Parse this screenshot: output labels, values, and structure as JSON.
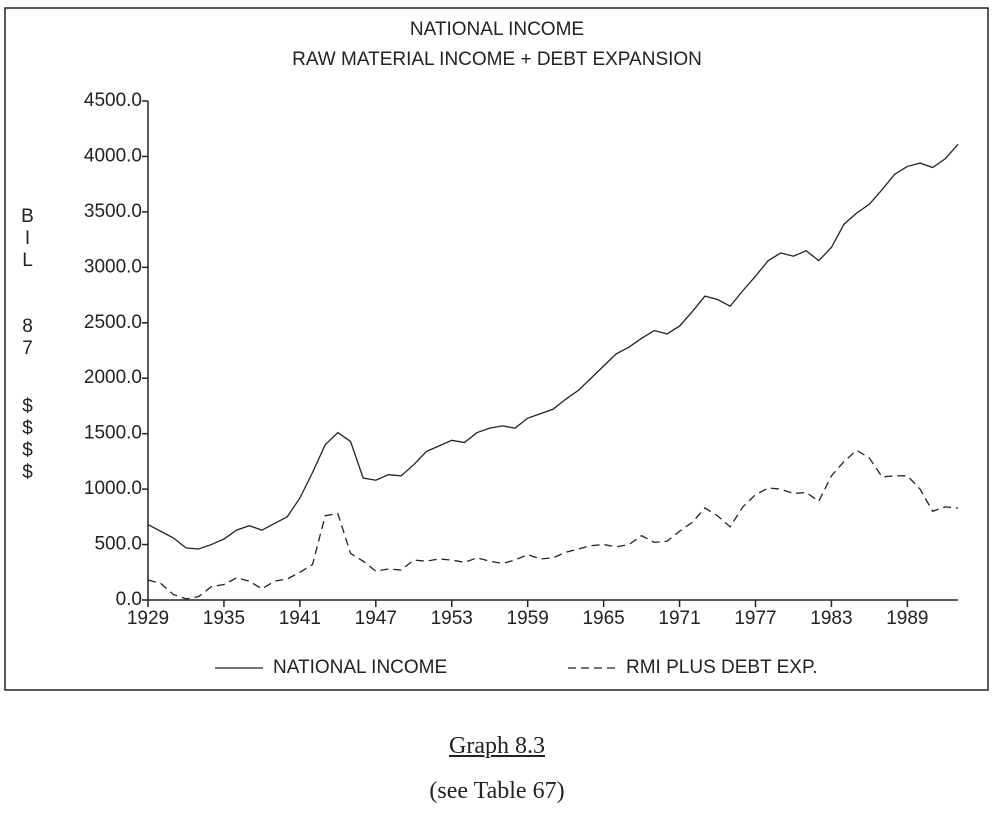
{
  "chart_data": {
    "type": "line",
    "title": "NATIONAL INCOME",
    "subtitle": "RAW MATERIAL INCOME + DEBT EXPANSION",
    "y_label_lines": [
      "BIL",
      "87",
      "$$$$"
    ],
    "x": [
      1929,
      1930,
      1931,
      1932,
      1933,
      1934,
      1935,
      1936,
      1937,
      1938,
      1939,
      1940,
      1941,
      1942,
      1943,
      1944,
      1945,
      1946,
      1947,
      1948,
      1949,
      1950,
      1951,
      1952,
      1953,
      1954,
      1955,
      1956,
      1957,
      1958,
      1959,
      1960,
      1961,
      1962,
      1963,
      1964,
      1965,
      1966,
      1967,
      1968,
      1969,
      1970,
      1971,
      1972,
      1973,
      1974,
      1975,
      1976,
      1977,
      1978,
      1979,
      1980,
      1981,
      1982,
      1983,
      1984,
      1985,
      1986,
      1987,
      1988,
      1989,
      1990,
      1991,
      1992,
      1993
    ],
    "series": [
      {
        "name": "NATIONAL INCOME",
        "color": "#222222",
        "dash": "solid",
        "values": [
          680,
          620,
          560,
          470,
          460,
          500,
          550,
          630,
          670,
          630,
          690,
          750,
          920,
          1150,
          1400,
          1510,
          1430,
          1100,
          1080,
          1130,
          1120,
          1220,
          1340,
          1390,
          1440,
          1420,
          1510,
          1550,
          1570,
          1550,
          1640,
          1680,
          1720,
          1810,
          1890,
          2000,
          2110,
          2220,
          2280,
          2360,
          2430,
          2400,
          2470,
          2600,
          2740,
          2710,
          2650,
          2790,
          2920,
          3060,
          3130,
          3100,
          3150,
          3060,
          3180,
          3390,
          3490,
          3570,
          3700,
          3840,
          3910,
          3940,
          3900,
          3980,
          4110
        ]
      },
      {
        "name": "RMI PLUS DEBT EXP.",
        "color": "#222222",
        "dash": "dashed",
        "values": [
          180,
          150,
          50,
          10,
          30,
          120,
          140,
          200,
          170,
          100,
          170,
          190,
          250,
          320,
          760,
          780,
          420,
          350,
          260,
          280,
          270,
          360,
          350,
          370,
          360,
          340,
          380,
          350,
          330,
          360,
          410,
          370,
          380,
          430,
          460,
          490,
          500,
          480,
          500,
          580,
          520,
          530,
          620,
          700,
          830,
          760,
          660,
          840,
          950,
          1010,
          1000,
          960,
          970,
          890,
          1120,
          1250,
          1350,
          1280,
          1110,
          1120,
          1120,
          1000,
          800,
          840,
          830
        ]
      }
    ],
    "xlim": [
      1929,
      1993
    ],
    "xticks": [
      1929,
      1935,
      1941,
      1947,
      1953,
      1959,
      1965,
      1971,
      1977,
      1983,
      1989
    ],
    "ylim": [
      0,
      4500
    ],
    "yticks": [
      {
        "value": 0,
        "label": "0.0"
      },
      {
        "value": 500,
        "label": "500.0"
      },
      {
        "value": 1000,
        "label": "1000.0"
      },
      {
        "value": 1500,
        "label": "1500.0"
      },
      {
        "value": 2000,
        "label": "2000.0"
      },
      {
        "value": 2500,
        "label": "2500.0"
      },
      {
        "value": 3000,
        "label": "3000.0"
      },
      {
        "value": 3500,
        "label": "3500.0"
      },
      {
        "value": 4000,
        "label": "4000.0"
      },
      {
        "value": 4500,
        "label": "4500.0"
      }
    ],
    "legend": "bottom",
    "caption": "Graph 8.3",
    "note": "(see Table 67)"
  }
}
